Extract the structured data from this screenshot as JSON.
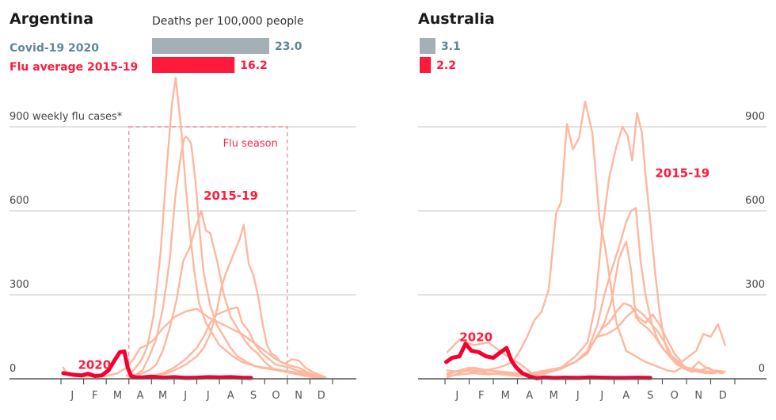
{
  "chart_data": [
    {
      "type": "line",
      "title": "Argentina",
      "ylabel": "weekly flu cases*",
      "ylim": [
        0,
        900
      ],
      "yticks": [
        0,
        300,
        600,
        900
      ],
      "ytick_labels": [
        "0",
        "300",
        "600",
        "900 weekly flu cases*"
      ],
      "ytick_side": "left",
      "x_categories": [
        "J",
        "F",
        "M",
        "A",
        "M",
        "J",
        "J",
        "A",
        "S",
        "O",
        "N",
        "D"
      ],
      "xlim_months": [
        0,
        12
      ],
      "grid": true,
      "bar_title": "Deaths per 100,000 people",
      "bars": [
        {
          "label": "Covid-19 2020",
          "value": 23.0,
          "value_label": "23.0",
          "color": "#a4afb6",
          "label_color": "#5f8797"
        },
        {
          "label": "Flu average 2015-19",
          "value": 16.2,
          "value_label": "16.2",
          "color": "#ff1a3c",
          "label_color": "#ff1a3c"
        }
      ],
      "bar_scale_max": 23.0,
      "flu_season": {
        "label": "Flu season",
        "start_month": 3.0,
        "end_month": 10.0
      },
      "annotations": [
        {
          "text": "2015-19",
          "month": 6.3,
          "value": 640
        },
        {
          "text": "2020",
          "month": 0.75,
          "value": 35
        }
      ],
      "series": [
        {
          "name": "2015-19 year A",
          "style": "flu",
          "x": [
            2.9,
            3.2,
            3.5,
            3.8,
            4.1,
            4.4,
            4.7,
            4.9,
            5.07,
            5.3,
            5.5,
            5.7,
            5.9,
            6.1,
            6.4,
            6.7,
            7.0,
            7.3,
            7.6,
            8.0,
            8.4,
            8.8,
            9.2,
            9.6,
            10.0,
            10.4,
            10.8,
            11.2,
            11.6
          ],
          "y": [
            10,
            30,
            60,
            110,
            230,
            450,
            780,
            980,
            1075,
            900,
            700,
            520,
            380,
            270,
            200,
            160,
            120,
            100,
            80,
            60,
            50,
            40,
            35,
            30,
            25,
            20,
            15,
            10,
            5
          ]
        },
        {
          "name": "2015-19 year B",
          "style": "flu",
          "x": [
            3.0,
            3.3,
            3.6,
            3.9,
            4.2,
            4.5,
            4.8,
            5.05,
            5.3,
            5.45,
            5.55,
            5.75,
            5.95,
            6.1,
            6.3,
            6.6,
            6.9,
            7.2,
            7.5,
            7.8,
            8.2,
            8.6,
            9.0,
            9.4,
            9.8,
            10.2,
            10.6,
            11.0,
            11.4
          ],
          "y": [
            5,
            15,
            30,
            80,
            140,
            250,
            420,
            650,
            800,
            860,
            865,
            840,
            700,
            550,
            380,
            260,
            190,
            150,
            110,
            80,
            60,
            45,
            40,
            35,
            30,
            25,
            20,
            12,
            5
          ]
        },
        {
          "name": "2015-19 year C",
          "style": "flu",
          "x": [
            3.0,
            3.3,
            3.6,
            3.9,
            4.2,
            4.5,
            4.8,
            5.1,
            5.4,
            5.7,
            5.95,
            6.2,
            6.4,
            6.6,
            6.9,
            7.2,
            7.5,
            7.8,
            8.1,
            8.4,
            8.7,
            9.0,
            9.3,
            9.6,
            9.9,
            10.2,
            10.5,
            10.8,
            11.2,
            11.6
          ],
          "y": [
            5,
            10,
            20,
            30,
            50,
            100,
            180,
            280,
            420,
            470,
            540,
            600,
            530,
            520,
            420,
            300,
            220,
            180,
            140,
            110,
            90,
            60,
            40,
            30,
            25,
            20,
            15,
            10,
            5,
            2
          ]
        },
        {
          "name": "2015-19 year D",
          "style": "flu",
          "x": [
            3.0,
            3.5,
            4.0,
            4.5,
            5.0,
            5.5,
            6.0,
            6.3,
            6.6,
            6.9,
            7.1,
            7.3,
            7.5,
            7.7,
            7.9,
            8.07,
            8.3,
            8.5,
            8.7,
            8.9,
            9.1,
            9.3,
            9.5,
            9.7,
            9.9,
            10.2,
            10.5,
            10.8,
            11.1,
            11.4,
            11.7
          ],
          "y": [
            2,
            5,
            8,
            15,
            30,
            50,
            80,
            110,
            160,
            250,
            330,
            380,
            420,
            460,
            500,
            550,
            410,
            370,
            300,
            200,
            120,
            90,
            80,
            60,
            55,
            70,
            65,
            40,
            25,
            15,
            5
          ]
        },
        {
          "name": "2015-19 year E",
          "style": "flu",
          "x": [
            3.0,
            3.5,
            4.0,
            4.5,
            5.0,
            5.5,
            6.0,
            6.3,
            6.6,
            6.9,
            7.2,
            7.5,
            7.8,
            8.0,
            8.3,
            8.6,
            8.9,
            9.2,
            9.5,
            9.8,
            10.1,
            10.4,
            10.7,
            11.0,
            11.3,
            11.6
          ],
          "y": [
            2,
            5,
            10,
            20,
            40,
            70,
            110,
            150,
            200,
            230,
            240,
            250,
            255,
            200,
            170,
            120,
            90,
            70,
            50,
            45,
            40,
            30,
            25,
            15,
            10,
            5
          ]
        },
        {
          "name": "2015-19 year F",
          "style": "flu",
          "x": [
            0.1,
            0.3,
            0.6,
            1.0,
            1.5,
            2.0,
            2.5,
            2.9,
            3.2,
            3.5,
            3.8,
            4.1,
            4.5,
            5.0,
            5.5,
            6.0,
            6.5,
            7.0,
            7.5,
            8.0,
            8.5,
            9.0,
            9.5,
            10.0,
            10.5,
            11.0,
            11.5
          ],
          "y": [
            40,
            15,
            10,
            8,
            8,
            10,
            20,
            40,
            70,
            110,
            120,
            140,
            180,
            220,
            240,
            250,
            220,
            200,
            180,
            160,
            130,
            100,
            70,
            50,
            40,
            20,
            5
          ]
        },
        {
          "name": "2020",
          "style": "covid-year",
          "x": [
            0.1,
            0.5,
            0.9,
            1.2,
            1.5,
            1.8,
            2.1,
            2.4,
            2.6,
            2.8,
            2.95,
            3.1,
            3.3,
            3.6,
            4.0,
            4.5,
            5.0,
            5.5,
            6.0,
            6.5,
            7.0,
            7.5,
            8.0,
            8.4
          ],
          "y": [
            20,
            15,
            12,
            18,
            10,
            12,
            30,
            70,
            95,
            98,
            40,
            10,
            5,
            5,
            8,
            4,
            6,
            3,
            4,
            6,
            5,
            6,
            4,
            3
          ]
        }
      ]
    },
    {
      "type": "line",
      "title": "Australia",
      "ylabel": "weekly flu cases*",
      "ylim": [
        0,
        900
      ],
      "yticks": [
        0,
        300,
        600,
        900
      ],
      "ytick_labels": [
        "0",
        "300",
        "600",
        "900"
      ],
      "ytick_side": "right",
      "x_categories": [
        "J",
        "F",
        "M",
        "A",
        "M",
        "J",
        "J",
        "A",
        "S",
        "O",
        "N",
        "D"
      ],
      "xlim_months": [
        0,
        12
      ],
      "grid": true,
      "bars": [
        {
          "label": "Covid-19 2020",
          "value": 3.1,
          "value_label": "3.1",
          "color": "#a4afb6",
          "label_color": "#5f8797"
        },
        {
          "label": "Flu average 2015-19",
          "value": 2.2,
          "value_label": "2.2",
          "color": "#ff1a3c",
          "label_color": "#ff1a3c"
        }
      ],
      "bar_scale_max": 23.0,
      "annotations": [
        {
          "text": "2015-19",
          "month": 8.7,
          "value": 720
        },
        {
          "text": "2020",
          "month": 0.6,
          "value": 135
        }
      ],
      "series": [
        {
          "name": "2015-19 year A",
          "style": "flu",
          "x": [
            0.1,
            0.6,
            1.0,
            1.6,
            2.0,
            2.4,
            2.8,
            3.1,
            3.4,
            3.7,
            4.0,
            4.3,
            4.6,
            4.8,
            5.05,
            5.3,
            5.55,
            5.8,
            6.1,
            6.4,
            6.65,
            6.85,
            7.1,
            7.5,
            7.9,
            8.3,
            8.6,
            8.9,
            9.2,
            9.5,
            9.8,
            10.2,
            10.6,
            11.0,
            11.3
          ],
          "y": [
            20,
            30,
            40,
            30,
            35,
            45,
            60,
            100,
            150,
            210,
            240,
            320,
            590,
            630,
            910,
            820,
            860,
            990,
            880,
            570,
            460,
            340,
            200,
            100,
            80,
            60,
            50,
            40,
            30,
            25,
            40,
            25,
            30,
            20,
            25
          ]
        },
        {
          "name": "2015-19 year B",
          "style": "flu",
          "x": [
            0.1,
            0.6,
            1.2,
            1.8,
            2.4,
            3.0,
            3.6,
            4.2,
            4.8,
            5.4,
            5.9,
            6.2,
            6.5,
            6.8,
            7.1,
            7.35,
            7.55,
            7.75,
            7.95,
            8.15,
            8.3,
            8.5,
            8.7,
            8.9,
            9.1,
            9.3,
            9.6,
            9.9,
            10.2,
            10.5,
            10.8,
            11.1,
            11.4
          ],
          "y": [
            30,
            25,
            30,
            20,
            15,
            10,
            15,
            25,
            40,
            80,
            130,
            250,
            520,
            720,
            830,
            900,
            870,
            780,
            950,
            880,
            730,
            560,
            380,
            230,
            130,
            80,
            60,
            40,
            30,
            25,
            20,
            20,
            25
          ]
        },
        {
          "name": "2015-19 year C",
          "style": "flu",
          "x": [
            0.1,
            0.6,
            1.2,
            1.8,
            2.4,
            3.0,
            3.6,
            4.2,
            4.8,
            5.4,
            5.9,
            6.3,
            6.6,
            6.9,
            7.2,
            7.5,
            7.7,
            7.9,
            8.1,
            8.3,
            8.55,
            8.8,
            9.1,
            9.4,
            9.7,
            10.0,
            10.3,
            10.6,
            10.9,
            11.2,
            11.5
          ],
          "y": [
            10,
            15,
            20,
            15,
            20,
            15,
            10,
            20,
            40,
            60,
            100,
            190,
            300,
            390,
            470,
            560,
            600,
            610,
            420,
            300,
            200,
            140,
            100,
            70,
            50,
            40,
            35,
            30,
            40,
            25,
            20
          ]
        },
        {
          "name": "2015-19 year D",
          "style": "flu",
          "x": [
            0.1,
            0.6,
            1.2,
            1.8,
            2.4,
            3.0,
            3.6,
            4.2,
            4.8,
            5.4,
            5.9,
            6.3,
            6.6,
            6.9,
            7.2,
            7.5,
            7.7,
            7.9,
            8.1,
            8.4,
            8.7,
            9.0,
            9.3,
            9.6,
            9.9,
            10.2,
            10.5,
            10.8,
            11.1,
            11.4
          ],
          "y": [
            5,
            20,
            40,
            30,
            25,
            20,
            10,
            20,
            35,
            60,
            100,
            150,
            200,
            280,
            430,
            490,
            390,
            220,
            200,
            180,
            150,
            110,
            80,
            50,
            40,
            35,
            60,
            40,
            30,
            20
          ]
        },
        {
          "name": "2015-19 year E",
          "style": "flu",
          "x": [
            0.1,
            0.6,
            1.2,
            1.8,
            2.4,
            3.0,
            3.6,
            4.2,
            4.8,
            5.4,
            5.9,
            6.2,
            6.5,
            6.8,
            7.1,
            7.4,
            7.7,
            8.0,
            8.3,
            8.6,
            8.9,
            9.2,
            9.5,
            9.8,
            10.1,
            10.4,
            10.7,
            11.0,
            11.3,
            11.6
          ],
          "y": [
            15,
            30,
            25,
            30,
            20,
            15,
            20,
            30,
            40,
            60,
            90,
            140,
            180,
            200,
            240,
            270,
            260,
            220,
            200,
            230,
            190,
            140,
            90,
            60,
            80,
            100,
            160,
            150,
            195,
            120
          ]
        },
        {
          "name": "2015-19 year F",
          "style": "flu",
          "x": [
            0.1,
            0.6,
            1.2,
            1.8,
            2.4,
            3.0,
            3.6,
            4.2,
            4.8,
            5.4,
            5.9,
            6.3,
            6.7,
            7.1,
            7.5,
            7.9,
            8.2,
            8.5,
            8.8,
            9.1,
            9.4,
            9.7,
            10.0,
            10.3,
            10.6,
            10.9,
            11.2,
            11.6
          ],
          "y": [
            95,
            140,
            120,
            130,
            90,
            60,
            20,
            30,
            40,
            60,
            100,
            150,
            160,
            180,
            220,
            250,
            230,
            200,
            170,
            130,
            80,
            60,
            40,
            35,
            30,
            25,
            30,
            25
          ]
        },
        {
          "name": "2020",
          "style": "covid-year",
          "x": [
            0.05,
            0.3,
            0.6,
            0.85,
            1.1,
            1.4,
            1.7,
            2.0,
            2.3,
            2.55,
            2.75,
            2.95,
            3.2,
            3.5,
            3.8,
            4.1,
            4.5,
            5.0,
            5.5,
            6.0,
            6.5,
            7.0,
            7.5,
            8.0,
            8.5
          ],
          "y": [
            60,
            75,
            80,
            125,
            100,
            95,
            80,
            75,
            95,
            110,
            65,
            40,
            20,
            8,
            2,
            5,
            3,
            4,
            3,
            5,
            4,
            3,
            3,
            4,
            3
          ]
        }
      ]
    }
  ]
}
